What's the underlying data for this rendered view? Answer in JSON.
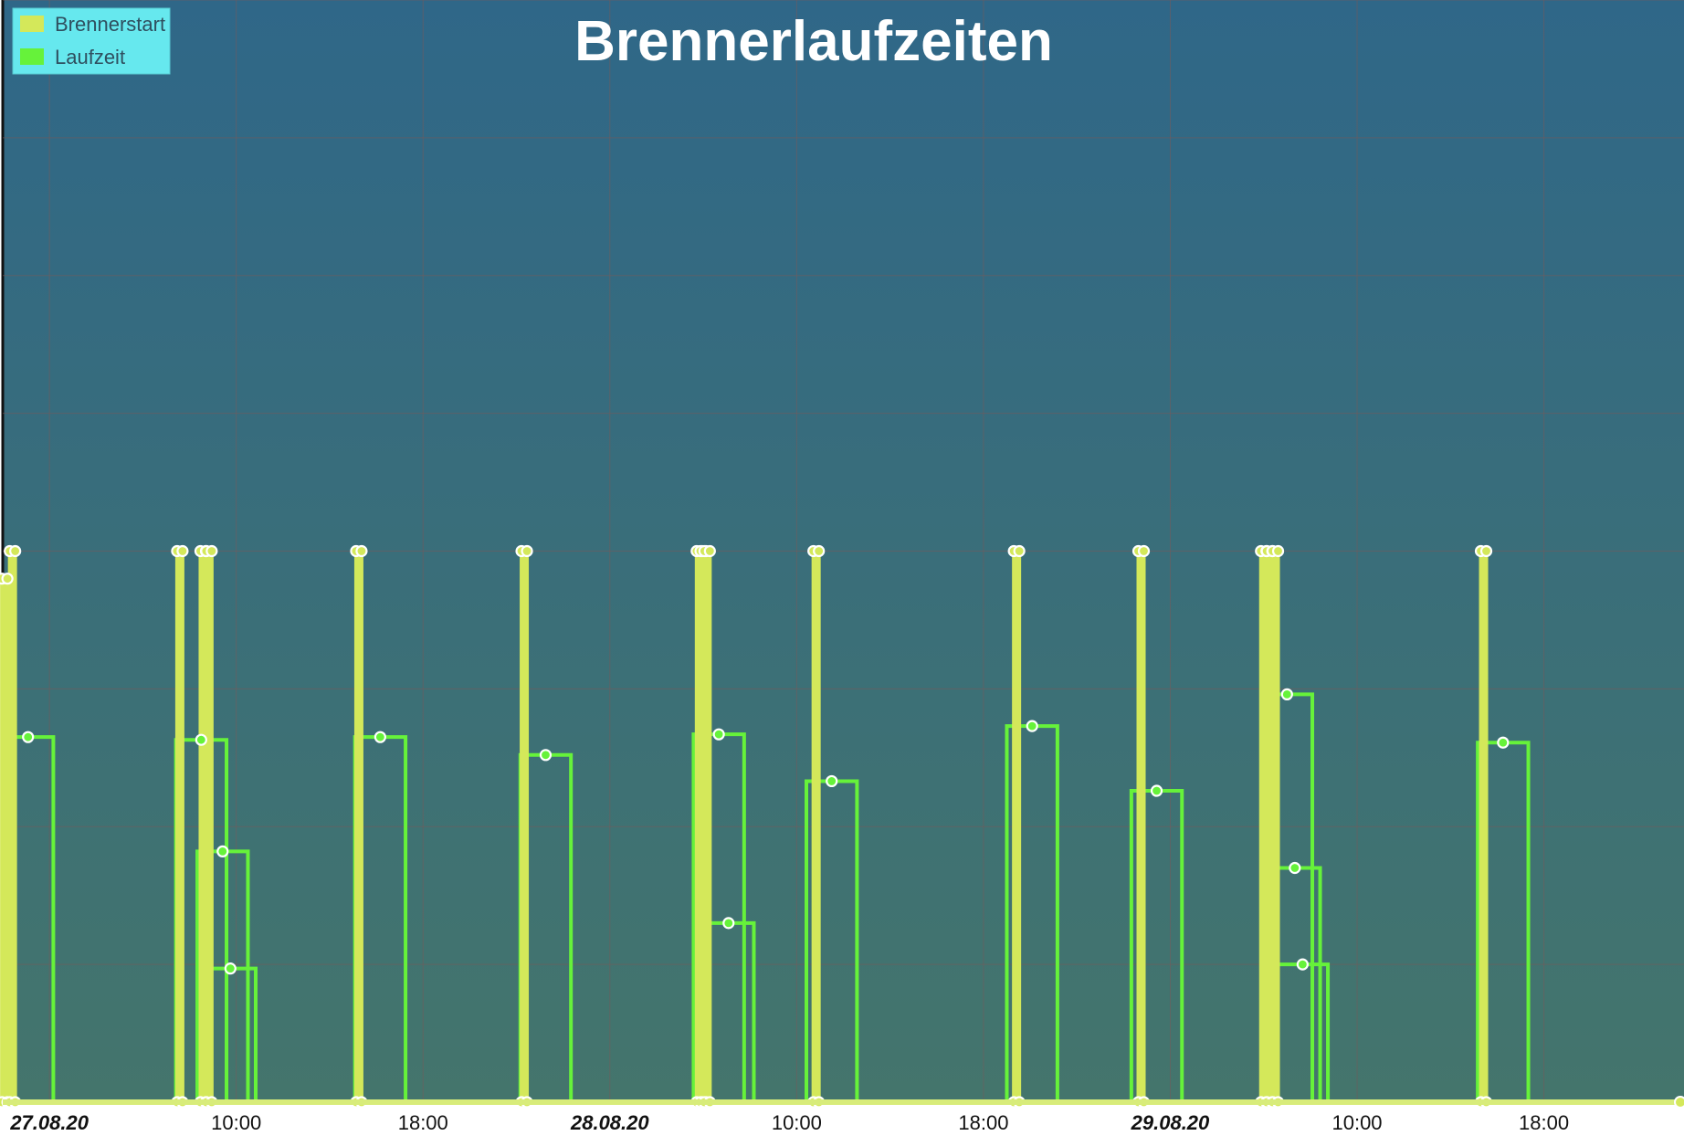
{
  "chart_data": {
    "type": "bar",
    "title": "Brennerlaufzeiten",
    "legend": {
      "placement": "top-left",
      "items": [
        {
          "name": "Brennerstart",
          "color": "#d4e85a"
        },
        {
          "name": "Laufzeit",
          "color": "#66f23a"
        }
      ]
    },
    "x_axis": {
      "start": "2020-08-27T00:00",
      "end": "2020-08-30T00:00",
      "tick_labels": [
        {
          "t": "2020-08-27T02:00",
          "label": "27.08.20",
          "bold": true
        },
        {
          "t": "2020-08-27T10:00",
          "label": "10:00",
          "bold": false
        },
        {
          "t": "2020-08-27T18:00",
          "label": "18:00",
          "bold": false
        },
        {
          "t": "2020-08-28T02:00",
          "label": "28.08.20",
          "bold": true
        },
        {
          "t": "2020-08-28T10:00",
          "label": "10:00",
          "bold": false
        },
        {
          "t": "2020-08-28T18:00",
          "label": "18:00",
          "bold": false
        },
        {
          "t": "2020-08-29T02:00",
          "label": "29.08.20",
          "bold": true
        },
        {
          "t": "2020-08-29T10:00",
          "label": "10:00",
          "bold": false
        },
        {
          "t": "2020-08-29T18:00",
          "label": "18:00",
          "bold": false
        }
      ]
    },
    "y_axis": {
      "min": 0,
      "max": 8,
      "grid_lines": 8,
      "labels_shown": false
    },
    "grid": true,
    "series": [
      {
        "name": "Brennerstart",
        "style": "thick vertical bars",
        "points": [
          {
            "t": "2020-08-27T00:05",
            "y": 3.8
          },
          {
            "t": "2020-08-27T00:25",
            "y": 4.0
          },
          {
            "t": "2020-08-27T07:35",
            "y": 4.0
          },
          {
            "t": "2020-08-27T08:35",
            "y": 4.0
          },
          {
            "t": "2020-08-27T08:50",
            "y": 4.0
          },
          {
            "t": "2020-08-27T15:15",
            "y": 4.0
          },
          {
            "t": "2020-08-27T22:20",
            "y": 4.0
          },
          {
            "t": "2020-08-28T05:50",
            "y": 4.0
          },
          {
            "t": "2020-08-28T06:00",
            "y": 4.0
          },
          {
            "t": "2020-08-28T06:10",
            "y": 4.0
          },
          {
            "t": "2020-08-28T10:50",
            "y": 4.0
          },
          {
            "t": "2020-08-28T19:25",
            "y": 4.0
          },
          {
            "t": "2020-08-29T00:45",
            "y": 4.0
          },
          {
            "t": "2020-08-29T06:00",
            "y": 4.0
          },
          {
            "t": "2020-08-29T06:15",
            "y": 4.0
          },
          {
            "t": "2020-08-29T06:30",
            "y": 4.0
          },
          {
            "t": "2020-08-29T15:25",
            "y": 4.0
          }
        ]
      },
      {
        "name": "Laufzeit",
        "style": "outlined step bars with point markers",
        "points": [
          {
            "t": "2020-08-27T00:00",
            "t_end": "2020-08-27T02:10",
            "y": 2.65
          },
          {
            "t": "2020-08-27T07:25",
            "t_end": "2020-08-27T09:35",
            "y": 2.63
          },
          {
            "t": "2020-08-27T08:20",
            "t_end": "2020-08-27T10:30",
            "y": 1.82
          },
          {
            "t": "2020-08-27T08:40",
            "t_end": "2020-08-27T10:50",
            "y": 0.97
          },
          {
            "t": "2020-08-27T15:05",
            "t_end": "2020-08-27T17:15",
            "y": 2.65
          },
          {
            "t": "2020-08-27T22:10",
            "t_end": "2020-08-28T00:20",
            "y": 2.52
          },
          {
            "t": "2020-08-28T05:35",
            "t_end": "2020-08-28T07:45",
            "y": 2.67
          },
          {
            "t": "2020-08-28T06:00",
            "t_end": "2020-08-28T08:10",
            "y": 1.3
          },
          {
            "t": "2020-08-28T10:25",
            "t_end": "2020-08-28T12:35",
            "y": 2.33
          },
          {
            "t": "2020-08-28T19:00",
            "t_end": "2020-08-28T21:10",
            "y": 2.73
          },
          {
            "t": "2020-08-29T00:20",
            "t_end": "2020-08-29T02:30",
            "y": 2.26
          },
          {
            "t": "2020-08-29T05:55",
            "t_end": "2020-08-29T08:05",
            "y": 2.96
          },
          {
            "t": "2020-08-29T06:15",
            "t_end": "2020-08-29T08:25",
            "y": 1.7
          },
          {
            "t": "2020-08-29T06:35",
            "t_end": "2020-08-29T08:45",
            "y": 1.0
          },
          {
            "t": "2020-08-29T15:10",
            "t_end": "2020-08-29T17:20",
            "y": 2.61
          }
        ]
      }
    ]
  }
}
